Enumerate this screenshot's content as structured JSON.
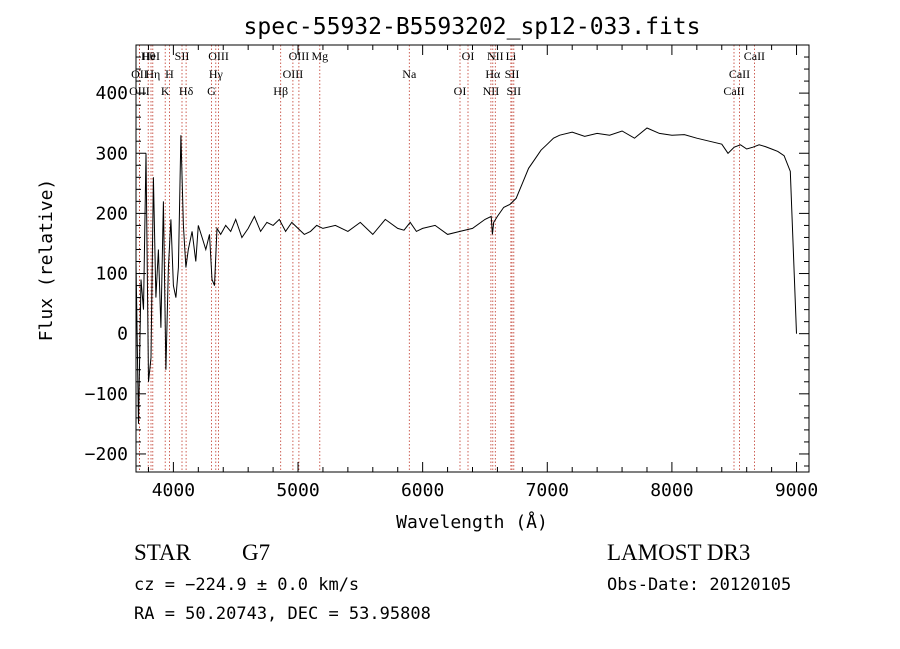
{
  "chart_data": {
    "type": "line",
    "title": "spec-55932-B5593202_sp12-033.fits",
    "xlabel": "Wavelength (Å)",
    "ylabel": "Flux (relative)",
    "xlim": [
      3700,
      9100
    ],
    "ylim": [
      -230,
      480
    ],
    "x_ticks": [
      4000,
      5000,
      6000,
      7000,
      8000,
      9000
    ],
    "x_tick_labels": [
      "4000",
      "5000",
      "6000",
      "7000",
      "8000",
      "9000"
    ],
    "y_ticks": [
      -200,
      -100,
      0,
      100,
      200,
      300,
      400
    ],
    "y_tick_labels": [
      "−200",
      "−100",
      "0",
      "100",
      "200",
      "300",
      "400"
    ],
    "series": [
      {
        "name": "flux",
        "x": [
          3700,
          3720,
          3740,
          3760,
          3780,
          3800,
          3820,
          3840,
          3860,
          3880,
          3900,
          3920,
          3940,
          3960,
          3980,
          4000,
          4020,
          4040,
          4060,
          4080,
          4100,
          4120,
          4150,
          4180,
          4200,
          4230,
          4260,
          4290,
          4310,
          4330,
          4350,
          4380,
          4420,
          4460,
          4500,
          4550,
          4600,
          4650,
          4700,
          4750,
          4800,
          4850,
          4900,
          4950,
          5000,
          5050,
          5100,
          5150,
          5200,
          5300,
          5400,
          5500,
          5600,
          5700,
          5800,
          5850,
          5900,
          5950,
          6000,
          6100,
          6200,
          6300,
          6400,
          6500,
          6550,
          6560,
          6570,
          6600,
          6650,
          6700,
          6750,
          6800,
          6850,
          6900,
          6950,
          7000,
          7050,
          7100,
          7200,
          7300,
          7400,
          7500,
          7600,
          7700,
          7800,
          7900,
          8000,
          8100,
          8200,
          8300,
          8400,
          8450,
          8500,
          8550,
          8600,
          8650,
          8700,
          8750,
          8800,
          8850,
          8900,
          8950,
          9000
        ],
        "y": [
          120,
          -150,
          90,
          40,
          300,
          -80,
          -40,
          260,
          60,
          140,
          10,
          220,
          -60,
          110,
          190,
          80,
          60,
          110,
          330,
          180,
          110,
          140,
          170,
          120,
          180,
          160,
          140,
          165,
          90,
          80,
          175,
          165,
          180,
          170,
          190,
          160,
          175,
          195,
          170,
          185,
          180,
          190,
          170,
          185,
          175,
          165,
          170,
          180,
          175,
          180,
          170,
          185,
          165,
          190,
          175,
          172,
          185,
          170,
          175,
          180,
          165,
          170,
          175,
          190,
          195,
          165,
          185,
          195,
          210,
          215,
          225,
          250,
          275,
          290,
          305,
          315,
          325,
          330,
          335,
          328,
          333,
          330,
          337,
          325,
          342,
          333,
          330,
          331,
          325,
          320,
          315,
          300,
          310,
          314,
          307,
          310,
          314,
          311,
          307,
          303,
          296,
          270,
          0
        ],
        "color": "#000000"
      }
    ],
    "line_marks": [
      {
        "label": "Hθ",
        "wavelength": 3798
      },
      {
        "label": "OII",
        "wavelength": 3727
      },
      {
        "label": "OIII",
        "wavelength": 3727
      },
      {
        "label": "HeI",
        "wavelength": 3820
      },
      {
        "label": "Hη",
        "wavelength": 3835
      },
      {
        "label": "K",
        "wavelength": 3934
      },
      {
        "label": "SII",
        "wavelength": 4069
      },
      {
        "label": "H",
        "wavelength": 3969
      },
      {
        "label": "Hδ",
        "wavelength": 4102
      },
      {
        "label": "OIII",
        "wavelength": 4363
      },
      {
        "label": "Hγ",
        "wavelength": 4340
      },
      {
        "label": "G",
        "wavelength": 4305
      },
      {
        "label": "OIII",
        "wavelength": 5007
      },
      {
        "label": "OIII",
        "wavelength": 4959
      },
      {
        "label": "Hβ",
        "wavelength": 4861
      },
      {
        "label": "Mg",
        "wavelength": 5175
      },
      {
        "label": "Na",
        "wavelength": 5893
      },
      {
        "label": "OI",
        "wavelength": 6300
      },
      {
        "label": "OI",
        "wavelength": 6364
      },
      {
        "label": "Hα",
        "wavelength": 6563
      },
      {
        "label": "NII",
        "wavelength": 6548
      },
      {
        "label": "NII",
        "wavelength": 6583
      },
      {
        "label": "SII",
        "wavelength": 6717
      },
      {
        "label": "SII",
        "wavelength": 6731
      },
      {
        "label": "Li",
        "wavelength": 6708
      },
      {
        "label": "CaII",
        "wavelength": 8542
      },
      {
        "label": "CaII",
        "wavelength": 8498
      },
      {
        "label": "CaII",
        "wavelength": 8662
      }
    ],
    "grid": false,
    "legend": "none"
  },
  "info": {
    "class_label": "STAR",
    "subclass": "G7",
    "survey": "LAMOST DR3",
    "cz": "cz = −224.9 ± 0.0 km/s",
    "obs_date": "Obs-Date: 20120105",
    "coords": "RA =  50.20743, DEC =  53.95808"
  }
}
